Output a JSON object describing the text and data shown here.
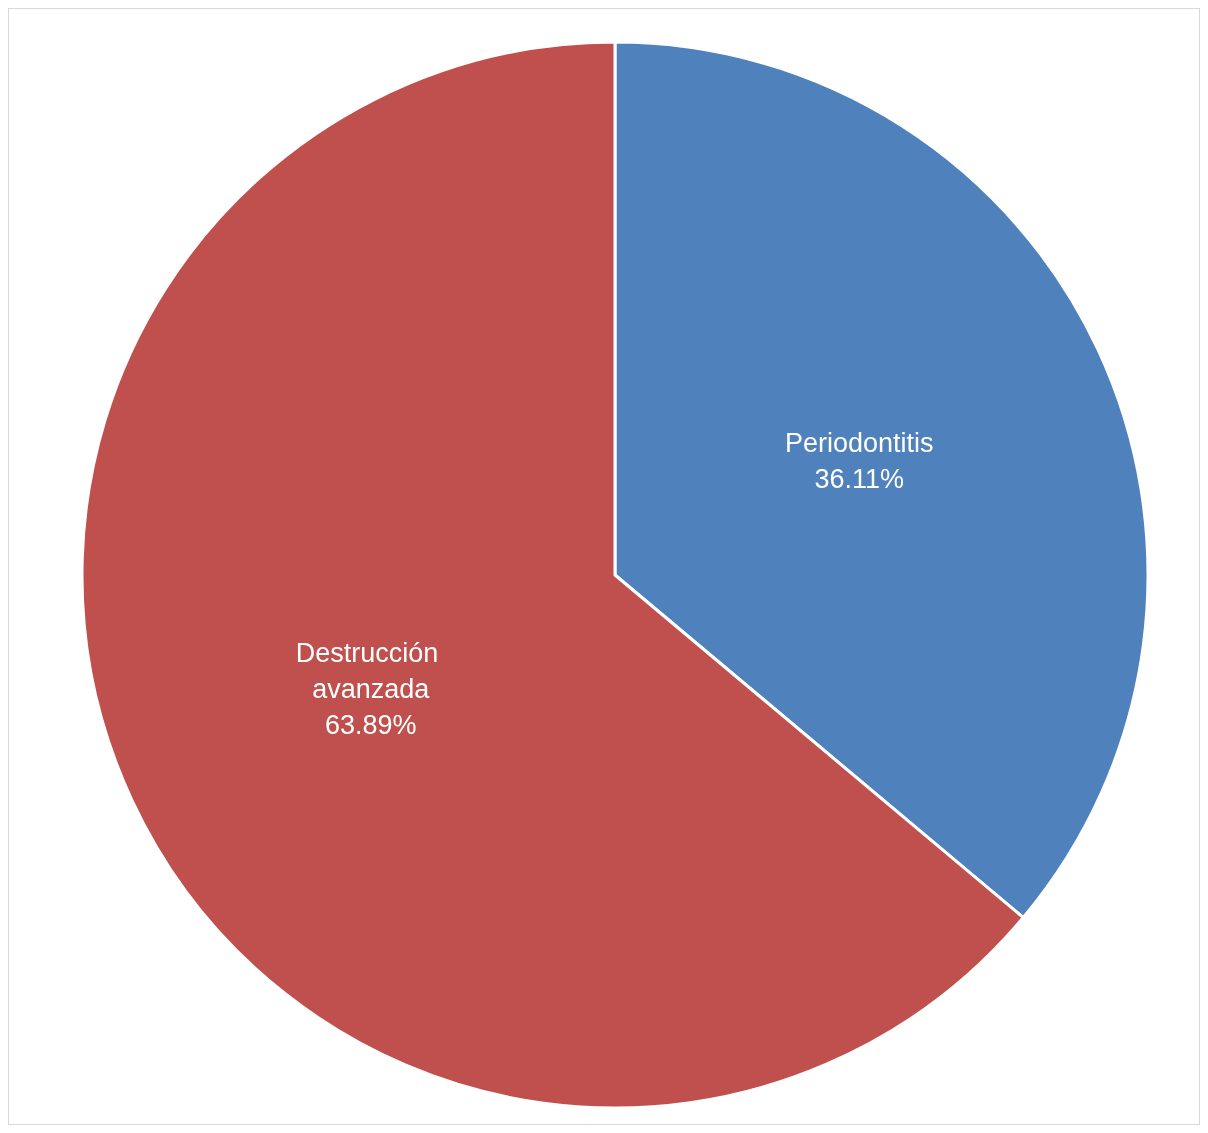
{
  "chart_data": {
    "type": "pie",
    "categories": [
      "Periodontitis",
      "Destrucción avanzada"
    ],
    "values": [
      36.11,
      63.89
    ],
    "colors": [
      "#4f81bd",
      "#c0504d"
    ],
    "value_labels": [
      "36.11%",
      "63.89%"
    ],
    "legend": false
  }
}
